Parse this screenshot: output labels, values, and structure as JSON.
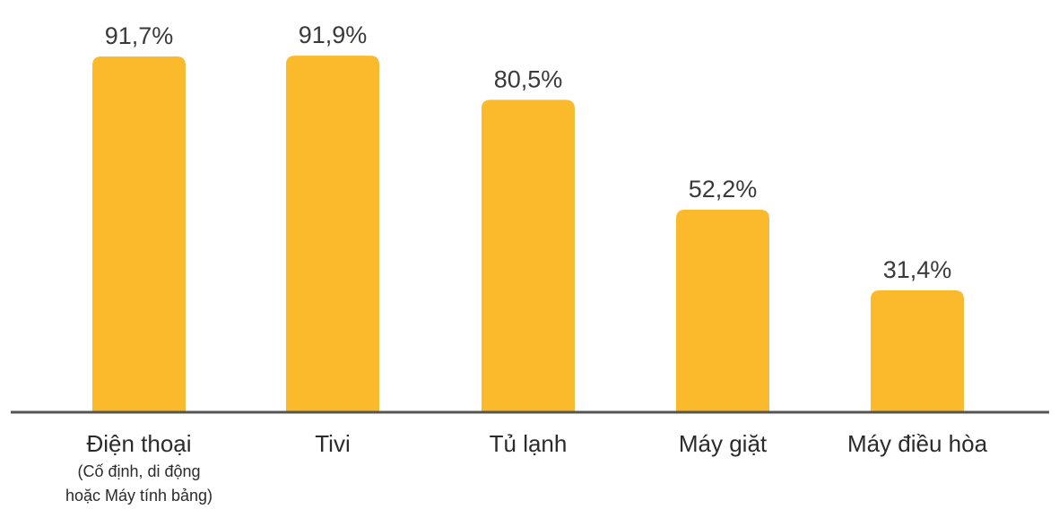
{
  "chart_data": {
    "type": "bar",
    "title": "",
    "xlabel": "",
    "ylabel": "",
    "ylim": [
      0,
      100
    ],
    "grid": false,
    "legend": "none",
    "bar_color": "#FBBA2C",
    "axis_color": "#555555",
    "categories": [
      {
        "label": "Điện thoại",
        "sublabel": [
          "(Cố định, di động",
          "hoặc Máy tính bảng)"
        ]
      },
      {
        "label": "Tivi",
        "sublabel": []
      },
      {
        "label": "Tủ lạnh",
        "sublabel": []
      },
      {
        "label": "Máy giặt",
        "sublabel": []
      },
      {
        "label": "Máy điều hòa",
        "sublabel": []
      }
    ],
    "values": [
      91.7,
      91.9,
      80.5,
      52.2,
      31.4
    ],
    "value_labels": [
      "91,7%",
      "91,9%",
      "80,5%",
      "52,2%",
      "31,4%"
    ]
  }
}
